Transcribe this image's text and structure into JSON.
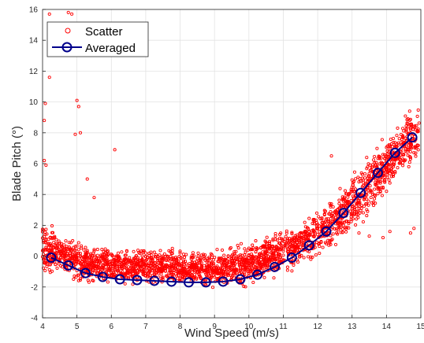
{
  "chart_data": {
    "type": "scatter",
    "xlabel": "Wind Speed (m/s)",
    "ylabel": "Blade Pitch  (°)",
    "xlim": [
      4,
      15
    ],
    "ylim": [
      -4,
      16
    ],
    "x_ticks": [
      "4",
      "5",
      "6",
      "7",
      "8",
      "9",
      "10",
      "11",
      "12",
      "13",
      "14",
      "15"
    ],
    "y_ticks": [
      "-4",
      "-2",
      "0",
      "2",
      "4",
      "6",
      "8",
      "10",
      "12",
      "14",
      "16"
    ],
    "grid": true,
    "legend_position": "top-left",
    "series": [
      {
        "name": "Scatter",
        "marker": "circle-open",
        "color": "#ff0000",
        "band_x": [
          4.0,
          4.5,
          5.0,
          5.5,
          6.0,
          6.5,
          7.0,
          7.5,
          8.0,
          8.5,
          9.0,
          9.5,
          10.0,
          10.5,
          11.0,
          11.5,
          12.0,
          12.5,
          13.0,
          13.5,
          14.0,
          14.5,
          15.0
        ],
        "band_low": [
          -1.8,
          -1.6,
          -2.0,
          -2.0,
          -2.1,
          -2.1,
          -2.1,
          -2.1,
          -2.2,
          -2.2,
          -2.3,
          -2.3,
          -2.2,
          -1.8,
          -1.4,
          -1.0,
          -0.4,
          0.3,
          1.2,
          2.3,
          3.6,
          4.8,
          5.8
        ],
        "band_high": [
          3.0,
          1.8,
          1.3,
          0.9,
          0.8,
          0.7,
          0.7,
          0.8,
          0.6,
          0.6,
          0.6,
          0.8,
          1.2,
          1.6,
          2.0,
          2.6,
          3.2,
          4.5,
          5.8,
          7.0,
          8.3,
          9.5,
          10.5
        ],
        "outliers": [
          {
            "x": 4.2,
            "y": 15.7
          },
          {
            "x": 4.75,
            "y": 15.8
          },
          {
            "x": 4.85,
            "y": 15.7
          },
          {
            "x": 4.2,
            "y": 11.6
          },
          {
            "x": 5.0,
            "y": 10.1
          },
          {
            "x": 5.05,
            "y": 9.7
          },
          {
            "x": 5.1,
            "y": 8.0
          },
          {
            "x": 4.95,
            "y": 7.9
          },
          {
            "x": 4.05,
            "y": 8.8
          },
          {
            "x": 4.08,
            "y": 9.9
          },
          {
            "x": 6.1,
            "y": 6.9
          },
          {
            "x": 5.3,
            "y": 5.0
          },
          {
            "x": 5.5,
            "y": 3.8
          },
          {
            "x": 4.05,
            "y": 6.2
          },
          {
            "x": 4.1,
            "y": 5.9
          },
          {
            "x": 12.4,
            "y": 6.5
          },
          {
            "x": 13.2,
            "y": 1.5
          },
          {
            "x": 13.5,
            "y": 1.3
          },
          {
            "x": 13.9,
            "y": 1.2
          },
          {
            "x": 14.1,
            "y": 1.6
          },
          {
            "x": 14.7,
            "y": 1.5
          },
          {
            "x": 14.8,
            "y": 1.8
          }
        ]
      },
      {
        "name": "Averaged",
        "marker": "circle-open",
        "color": "#00008b",
        "x": [
          4.25,
          4.75,
          5.25,
          5.75,
          6.25,
          6.75,
          7.25,
          7.75,
          8.25,
          8.75,
          9.25,
          9.75,
          10.25,
          10.75,
          11.25,
          11.75,
          12.25,
          12.75,
          13.25,
          13.75,
          14.25,
          14.75
        ],
        "y": [
          -0.1,
          -0.6,
          -1.1,
          -1.35,
          -1.5,
          -1.55,
          -1.6,
          -1.65,
          -1.7,
          -1.7,
          -1.65,
          -1.5,
          -1.2,
          -0.7,
          -0.1,
          0.7,
          1.6,
          2.8,
          4.1,
          5.4,
          6.7,
          7.7
        ]
      }
    ]
  }
}
